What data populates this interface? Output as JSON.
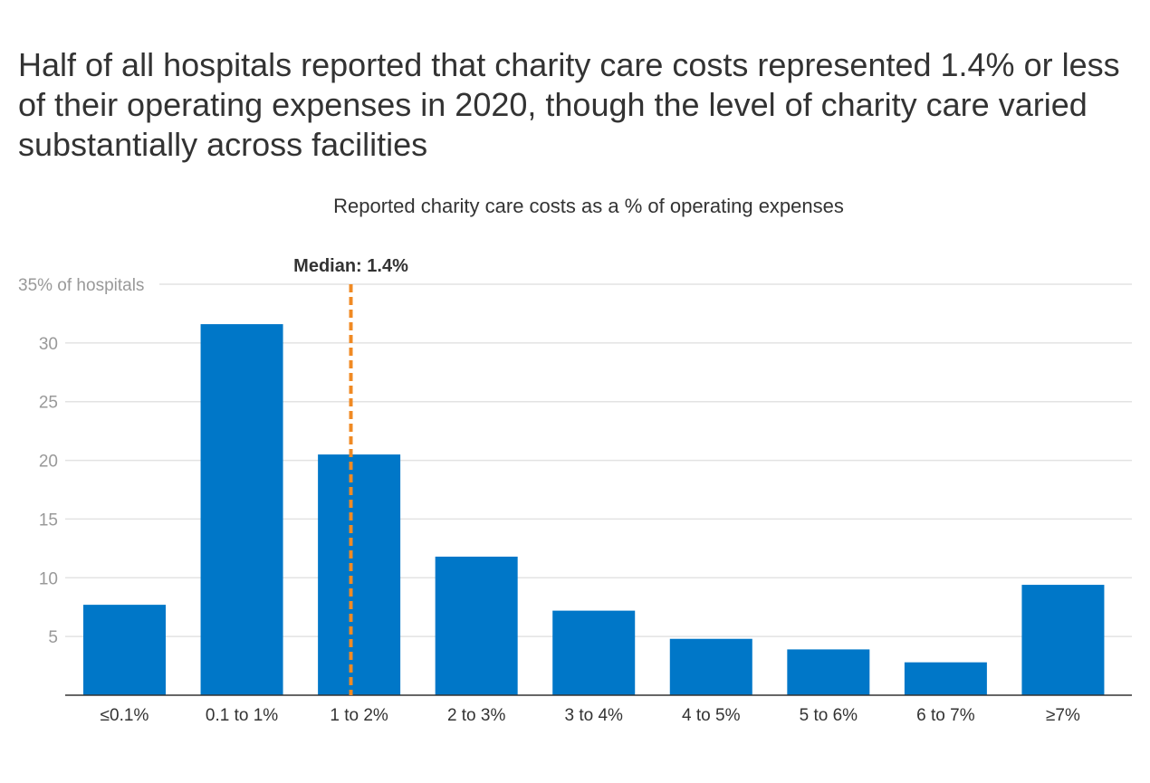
{
  "chart_data": {
    "type": "bar",
    "title": "Half of all hospitals reported that charity care costs represented 1.4% or less of their operating expenses in 2020, though the level of charity care varied substantially across facilities",
    "subtitle": "Reported charity care costs as a % of operating expenses",
    "categories": [
      "≤0.1%",
      "0.1 to 1%",
      "1 to 2%",
      "2 to 3%",
      "3 to 4%",
      "4 to 5%",
      "5 to 6%",
      "6 to 7%",
      "≥7%"
    ],
    "values": [
      7.7,
      31.6,
      20.5,
      11.8,
      7.2,
      4.8,
      3.9,
      2.8,
      9.4
    ],
    "ylim": [
      0,
      35
    ],
    "yticks": [
      5,
      10,
      15,
      20,
      25,
      30,
      35
    ],
    "ytick_labels": [
      "5",
      "10",
      "15",
      "20",
      "25",
      "30",
      "35% of hospitals"
    ],
    "grid": true,
    "bar_color": "#0077c8",
    "annotation": {
      "label": "Median: 1.4%",
      "value": 1.4,
      "color": "#f08a24"
    }
  }
}
